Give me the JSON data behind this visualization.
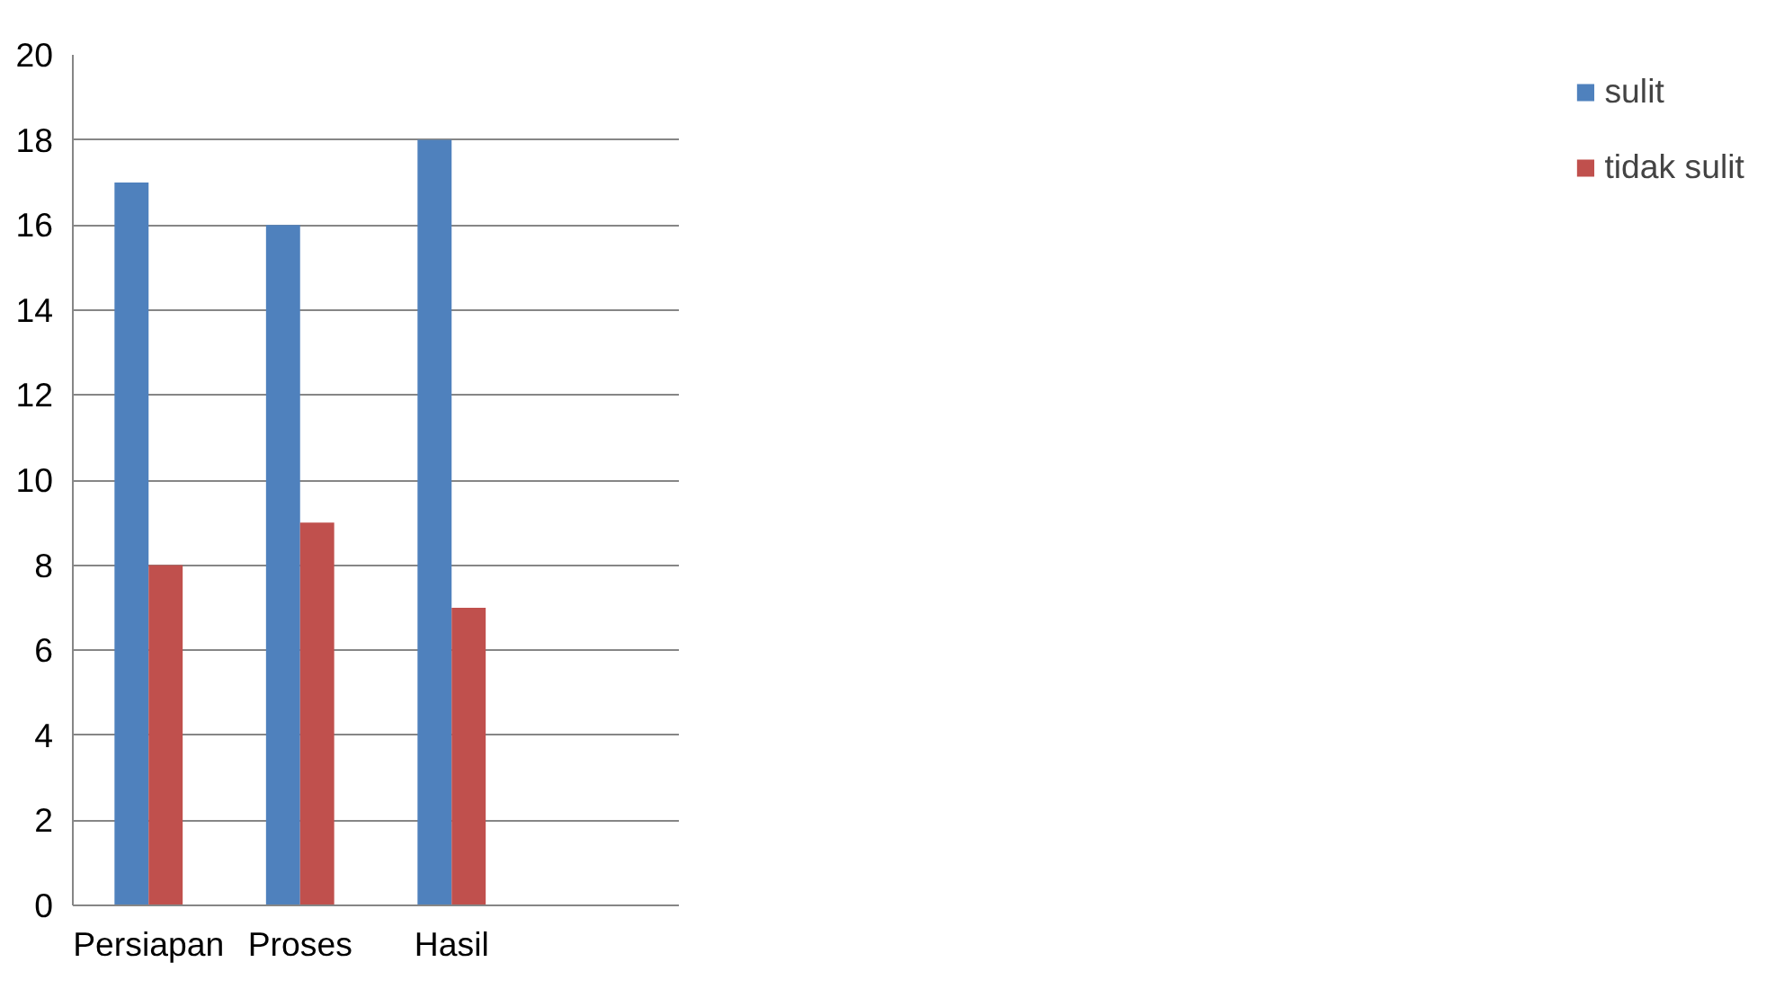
{
  "chart_data": {
    "type": "bar",
    "categories": [
      "Persiapan",
      "Proses",
      "Hasil",
      null
    ],
    "series": [
      {
        "name": "sulit",
        "color": "#4f81bd",
        "values": [
          17,
          16,
          18,
          null
        ]
      },
      {
        "name": "tidak sulit",
        "color": "#c0504d",
        "values": [
          8,
          9,
          7,
          null
        ]
      }
    ],
    "ylim": [
      0,
      20
    ],
    "yticks": [
      0,
      2,
      4,
      6,
      8,
      10,
      12,
      14,
      16,
      18,
      20
    ],
    "grid": "y",
    "legend": "right"
  }
}
